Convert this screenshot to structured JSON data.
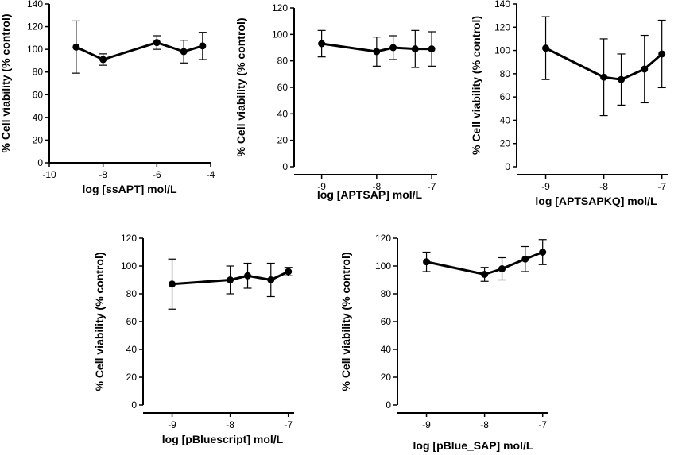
{
  "chart_data": [
    {
      "type": "line",
      "xlabel": "log [ssAPT] mol/L",
      "ylabel": "% Cell viability (% control)",
      "xlim": [
        -10,
        -4
      ],
      "ylim": [
        0,
        140
      ],
      "xticks": [
        -10,
        -8,
        -6,
        -4
      ],
      "yticks": [
        0,
        20,
        40,
        60,
        80,
        100,
        120,
        140
      ],
      "x": [
        -9,
        -8,
        -6,
        -5,
        -4.3
      ],
      "values": [
        102,
        91,
        106,
        98,
        103
      ],
      "errors": [
        23,
        5,
        6,
        10,
        12
      ]
    },
    {
      "type": "line",
      "xlabel": "log [APTSAP] mol/L",
      "ylabel": "% Cell viability (% control)",
      "xlim": [
        -9.5,
        -6.9
      ],
      "ylim": [
        0,
        120
      ],
      "xticks": [
        -9,
        -8,
        -7
      ],
      "yticks": [
        0,
        20,
        40,
        60,
        80,
        100,
        120
      ],
      "x": [
        -9,
        -8,
        -7.7,
        -7.3,
        -7
      ],
      "values": [
        93,
        87,
        90,
        89,
        89
      ],
      "errors": [
        10,
        11,
        9,
        14,
        13
      ]
    },
    {
      "type": "line",
      "xlabel": "log [APTSAPKQ] mol/L",
      "ylabel": "% Cell viability (% control)",
      "xlim": [
        -9.5,
        -6.9
      ],
      "ylim": [
        0,
        140
      ],
      "xticks": [
        -9,
        -8,
        -7
      ],
      "yticks": [
        0,
        20,
        40,
        60,
        80,
        100,
        120,
        140
      ],
      "x": [
        -9,
        -8,
        -7.7,
        -7.3,
        -7
      ],
      "values": [
        102,
        77,
        75,
        84,
        97
      ],
      "errors": [
        27,
        33,
        22,
        29,
        29
      ]
    },
    {
      "type": "line",
      "xlabel": "log [pBluescript] mol/L",
      "ylabel": "% Cell viability (% control)",
      "xlim": [
        -9.5,
        -6.9
      ],
      "ylim": [
        0,
        120
      ],
      "xticks": [
        -9,
        -8,
        -7
      ],
      "yticks": [
        0,
        20,
        40,
        60,
        80,
        100,
        120
      ],
      "x": [
        -9,
        -8,
        -7.7,
        -7.3,
        -7
      ],
      "values": [
        87,
        90,
        93,
        90,
        96
      ],
      "errors": [
        18,
        10,
        9,
        12,
        3
      ]
    },
    {
      "type": "line",
      "xlabel": "log [pBlue_SAP] mol/L",
      "ylabel": "% Cell viability (% control)",
      "xlim": [
        -9.5,
        -6.9
      ],
      "ylim": [
        0,
        120
      ],
      "xticks": [
        -9,
        -8,
        -7
      ],
      "yticks": [
        0,
        20,
        40,
        60,
        80,
        100,
        120
      ],
      "x": [
        -9,
        -8,
        -7.7,
        -7.3,
        -7
      ],
      "values": [
        103,
        94,
        98,
        105,
        110
      ],
      "errors": [
        7,
        5,
        8,
        9,
        9
      ]
    }
  ]
}
